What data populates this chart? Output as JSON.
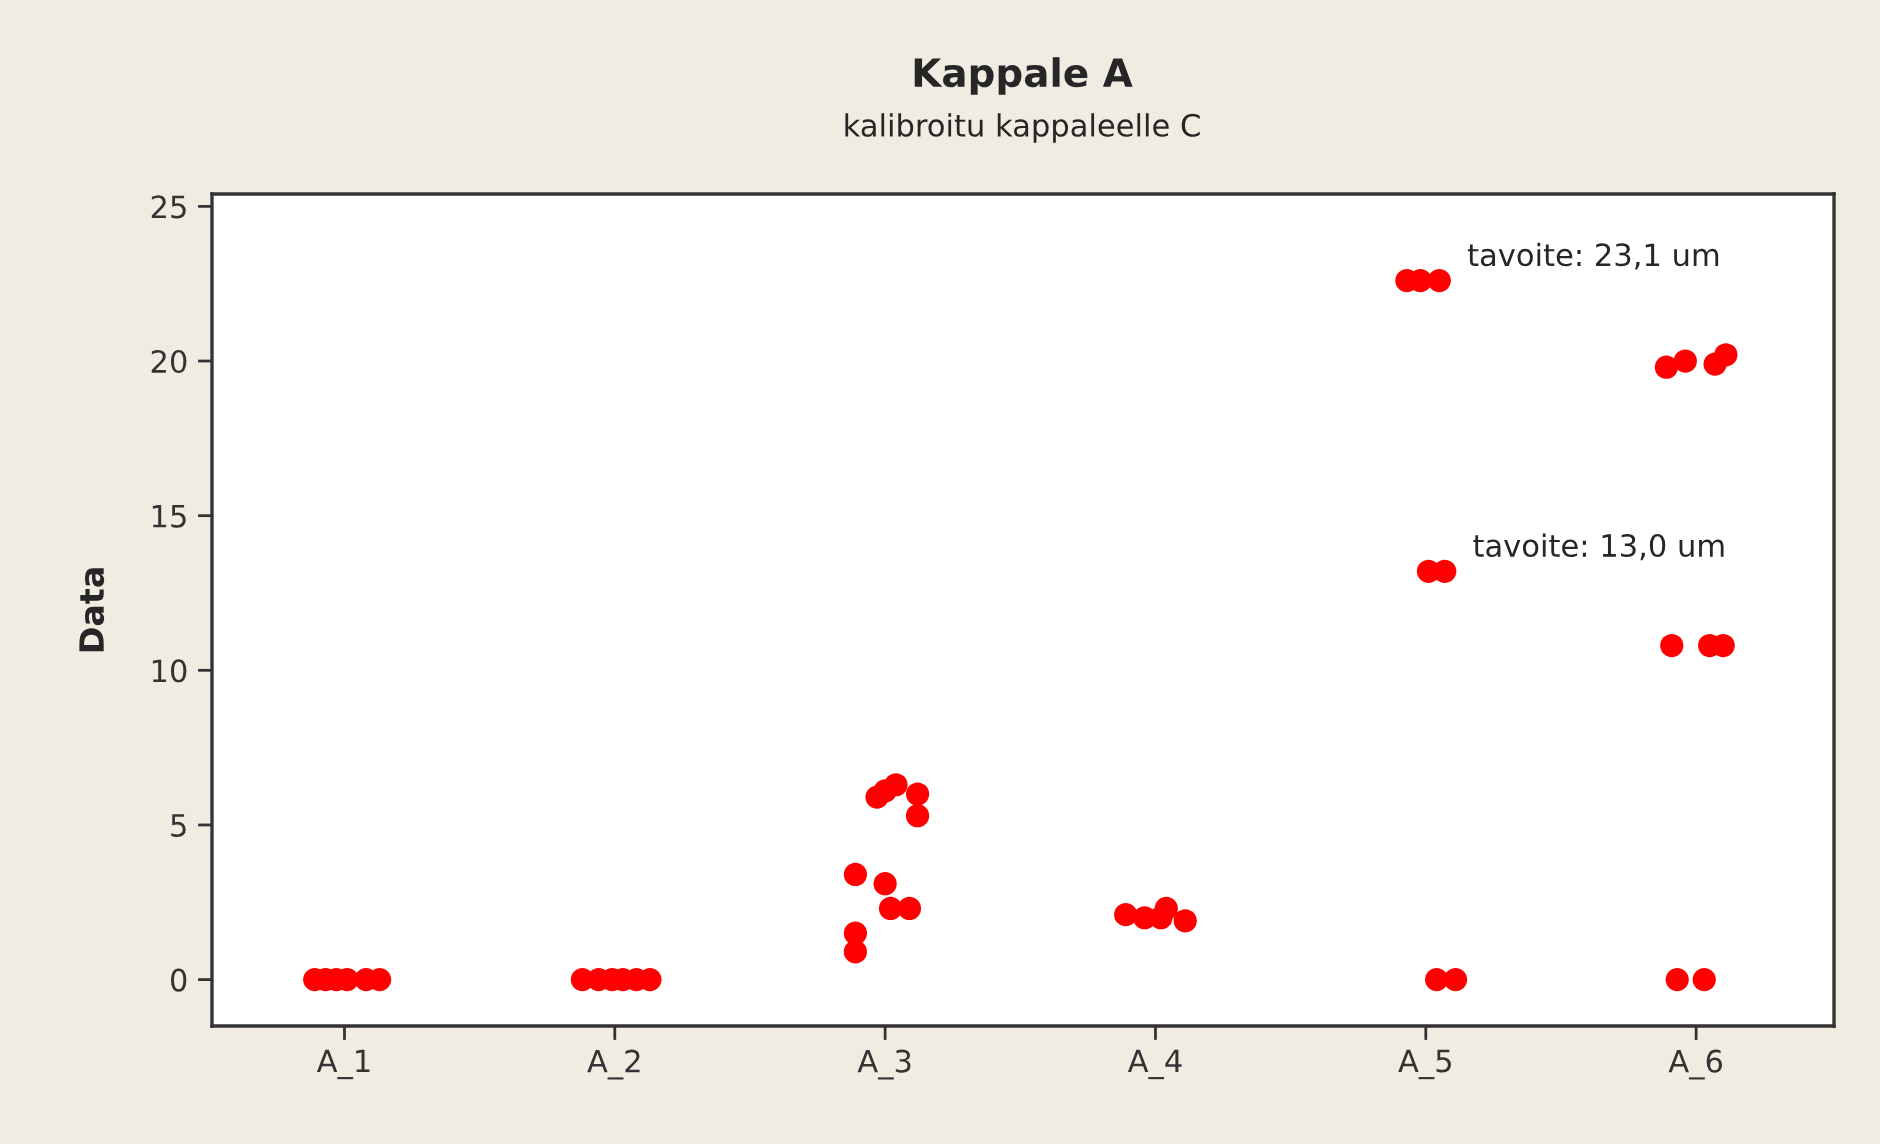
{
  "chart_data": {
    "type": "scatter",
    "title": "Kappale A",
    "subtitle": "kalibroitu kappaleelle C",
    "ylabel": "Data",
    "xlim": [
      0.51,
      6.51
    ],
    "xticks": [
      {
        "value": 1,
        "label": "A_1"
      },
      {
        "value": 2,
        "label": "A_2"
      },
      {
        "value": 3,
        "label": "A_3"
      },
      {
        "value": 4,
        "label": "A_4"
      },
      {
        "value": 5,
        "label": "A_5"
      },
      {
        "value": 6,
        "label": "A_6"
      }
    ],
    "ylim": [
      -1.5,
      25.4
    ],
    "yticks": [
      0,
      5,
      10,
      15,
      20,
      25
    ],
    "grid": false,
    "marker": "circle",
    "series": [
      {
        "color": "#ff0000",
        "x": [
          0.89,
          0.93,
          0.97,
          1.01,
          1.08,
          1.13,
          1.88,
          1.94,
          1.99,
          2.03,
          2.08,
          2.13,
          2.97,
          3.0,
          3.04,
          3.12,
          3.12,
          2.89,
          3.0,
          3.02,
          3.09,
          2.89,
          2.89,
          3.89,
          3.96,
          4.02,
          4.04,
          4.11,
          4.93,
          4.98,
          5.05,
          5.01,
          5.07,
          5.04,
          5.11,
          5.89,
          5.96,
          6.07,
          6.11,
          5.91,
          6.05,
          6.1,
          5.93,
          6.03
        ],
        "values": [
          0,
          0,
          0,
          0,
          0,
          0,
          0,
          0,
          0,
          0,
          0,
          0,
          5.9,
          6.1,
          6.3,
          6.0,
          5.3,
          3.4,
          3.1,
          2.3,
          2.3,
          1.5,
          0.9,
          2.1,
          2.0,
          2.0,
          2.3,
          1.9,
          22.6,
          22.6,
          22.6,
          13.2,
          13.2,
          0,
          0,
          19.8,
          20.0,
          19.9,
          20.2,
          10.8,
          10.8,
          10.8,
          0,
          0
        ]
      }
    ],
    "annotations": [
      {
        "text": "tavoite: 23,1 um",
        "x": 5.05,
        "y": 22.6
      },
      {
        "text": "tavoite: 13,0 um",
        "x": 5.07,
        "y": 13.2
      }
    ]
  }
}
